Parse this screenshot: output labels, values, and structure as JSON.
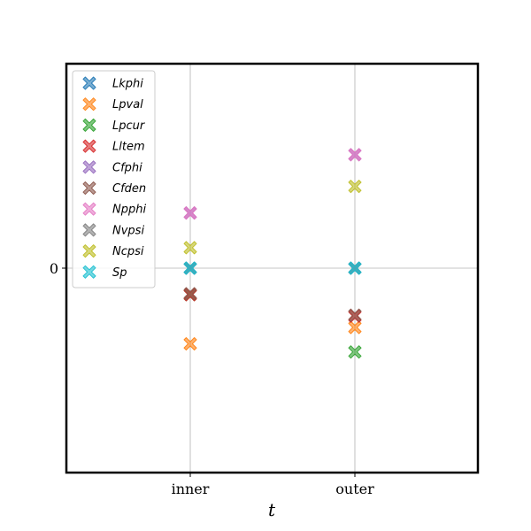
{
  "chart_data": {
    "type": "scatter",
    "categories": [
      "inner",
      "outer"
    ],
    "xlabel": "t",
    "ylabel": "",
    "yticks": [
      0
    ],
    "ylim": [
      -1.0,
      1.0
    ],
    "grid": true,
    "legend_position": "top-left",
    "marker": "X",
    "series": [
      {
        "name": "Lkphi",
        "color": "#1f77b4",
        "values": [
          0.0,
          0.0
        ]
      },
      {
        "name": "Lpval",
        "color": "#ff7f0e",
        "values": [
          -0.37,
          -0.29
        ]
      },
      {
        "name": "Lpcur",
        "color": "#2ca02c",
        "values": [
          -0.13,
          -0.41
        ]
      },
      {
        "name": "Lltem",
        "color": "#d62728",
        "values": [
          -0.13,
          -0.235
        ]
      },
      {
        "name": "Cfphi",
        "color": "#9467bd",
        "values": [
          0.27,
          0.555
        ]
      },
      {
        "name": "Cfden",
        "color": "#8c564b",
        "values": [
          -0.125,
          -0.23
        ]
      },
      {
        "name": "Npphi",
        "color": "#e377c2",
        "values": [
          0.27,
          0.555
        ]
      },
      {
        "name": "Nvpsi",
        "color": "#7f7f7f",
        "values": [
          0.0,
          0.0
        ]
      },
      {
        "name": "Ncpsi",
        "color": "#bcbd22",
        "values": [
          0.1,
          0.4
        ]
      },
      {
        "name": "Sp",
        "color": "#17becf",
        "values": [
          0.0,
          0.0
        ]
      }
    ]
  }
}
